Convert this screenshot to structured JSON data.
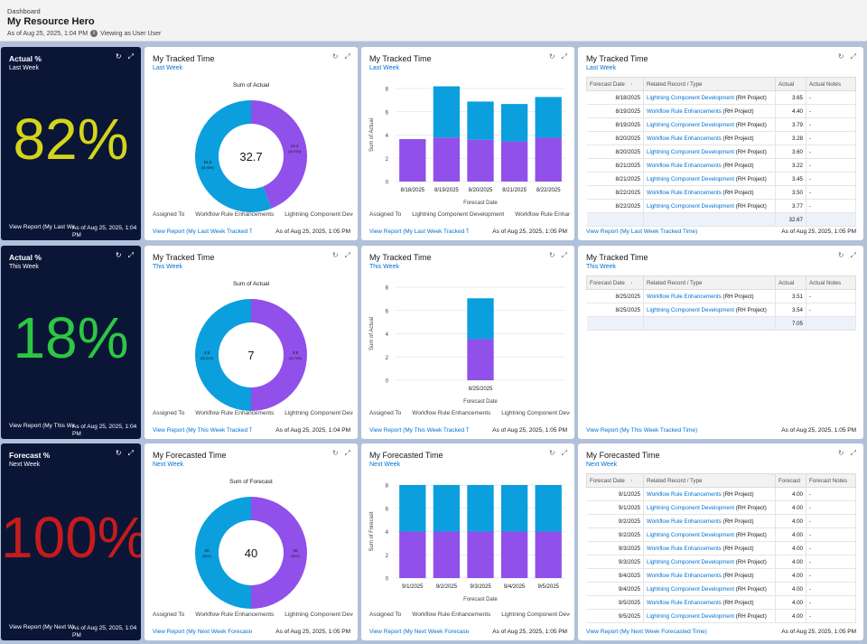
{
  "header": {
    "crumb": "Dashboard",
    "title": "My Resource Hero",
    "as_of": "As of Aug 25, 2025, 1:04 PM",
    "viewing": "Viewing as User User"
  },
  "colors": {
    "purple": "#9050e9",
    "blue": "#0b9fde",
    "yellow": "#d4d51a",
    "green": "#2dc743",
    "red": "#c41c1c",
    "link": "#0070d2"
  },
  "icons": {
    "refresh": "refresh-icon",
    "expand": "expand-icon",
    "info": "info-icon"
  },
  "rows": [
    {
      "metric": {
        "title": "Actual %",
        "sub": "Last Week",
        "value": "82%",
        "link": "View Report (My Last Week",
        "asof": "As of Aug 25, 2025, 1:04 PM",
        "color": "#d4d51a"
      },
      "donut": {
        "title": "My Tracked Time",
        "sub": "Last Week",
        "chart_title": "Sum of Actual",
        "center": "32.7",
        "purple": 14.4,
        "blue": 18.3,
        "label_purple": "14.4",
        "pct_purple": "(44.04%)",
        "label_blue": "18.3",
        "pct_blue": "(55.96%)",
        "legend_title": "Assigned To",
        "legend": [
          "Workflow Rule Enhancements",
          "Lightning Component Development"
        ],
        "link": "View Report (My Last Week Tracked Time",
        "asof": "As of Aug 25, 2025, 1:05 PM"
      },
      "bar": {
        "title": "My Tracked Time",
        "sub": "Last Week",
        "link": "View Report (My Last Week Tracked Time",
        "asof": "As of Aug 25, 2025, 1:05 PM",
        "legend_title": "Assigned To",
        "legend": [
          "Lightning Component Development",
          "Workflow Rule Enhancements"
        ],
        "chart_data": {
          "type": "bar",
          "categories": [
            "8/18/2025",
            "8/19/2025",
            "8/20/2025",
            "8/21/2025",
            "8/22/2025"
          ],
          "series": [
            {
              "name": "Lightning Component Development",
              "values": [
                3.65,
                3.79,
                3.6,
                3.45,
                3.77
              ]
            },
            {
              "name": "Workflow Rule Enhancements",
              "values": [
                0,
                4.4,
                3.28,
                3.22,
                3.5
              ]
            }
          ],
          "xlabel": "Forecast Date",
          "ylabel": "Sum of Actual",
          "ylim": [
            0,
            8
          ],
          "yticks": [
            "0",
            "2",
            "4",
            "6",
            "8"
          ]
        }
      },
      "table": {
        "title": "My Tracked Time",
        "sub": "Last Week",
        "link": "View Report (My Last Week Tracked Time)",
        "asof": "As of Aug 25, 2025, 1:05 PM",
        "columns": [
          "Forecast Date",
          "Related Record / Type",
          "Actual",
          "Actual Notes"
        ],
        "rows": [
          {
            "date": "8/18/2025",
            "rec": "Lightning Component Development",
            "type": "(RH Project)",
            "val": "3.65",
            "note": "-"
          },
          {
            "date": "8/19/2025",
            "rec": "Workflow Rule Enhancements",
            "type": "(RH Project)",
            "val": "4.40",
            "note": "-"
          },
          {
            "date": "8/19/2025",
            "rec": "Lightning Component Development",
            "type": "(RH Project)",
            "val": "3.79",
            "note": "-"
          },
          {
            "date": "8/20/2025",
            "rec": "Workflow Rule Enhancements",
            "type": "(RH Project)",
            "val": "3.28",
            "note": "-"
          },
          {
            "date": "8/20/2025",
            "rec": "Lightning Component Development",
            "type": "(RH Project)",
            "val": "3.60",
            "note": "-"
          },
          {
            "date": "8/21/2025",
            "rec": "Workflow Rule Enhancements",
            "type": "(RH Project)",
            "val": "3.22",
            "note": "-"
          },
          {
            "date": "8/21/2025",
            "rec": "Lightning Component Development",
            "type": "(RH Project)",
            "val": "3.45",
            "note": "-"
          },
          {
            "date": "8/22/2025",
            "rec": "Workflow Rule Enhancements",
            "type": "(RH Project)",
            "val": "3.50",
            "note": "-"
          },
          {
            "date": "8/22/2025",
            "rec": "Lightning Component Development",
            "type": "(RH Project)",
            "val": "3.77",
            "note": "-"
          }
        ],
        "total": "32.67"
      }
    },
    {
      "metric": {
        "title": "Actual %",
        "sub": "This Week",
        "value": "18%",
        "link": "View Report (My This We",
        "asof": "As of Aug 25, 2025, 1:04 PM",
        "color": "#2dc743"
      },
      "donut": {
        "title": "My Tracked Time",
        "sub": "This Week",
        "chart_title": "Sum of Actual",
        "center": "7",
        "purple": 3.5,
        "blue": 3.5,
        "label_purple": "3.5",
        "pct_purple": "(49.79%)",
        "label_blue": "3.5",
        "pct_blue": "(50.21%)",
        "legend_title": "Assigned To",
        "legend": [
          "Workflow Rule Enhancements",
          "Lightning Component Development"
        ],
        "link": "View Report (My This Week Tracked Time",
        "asof": "As of Aug 25, 2025, 1:04 PM"
      },
      "bar": {
        "title": "My Tracked Time",
        "sub": "This Week",
        "link": "View Report (My This Week Tracked Time",
        "asof": "As of Aug 25, 2025, 1:05 PM",
        "legend_title": "Assigned To",
        "legend": [
          "Workflow Rule Enhancements",
          "Lightning Component Development"
        ],
        "chart_data": {
          "type": "bar",
          "categories": [
            "8/25/2025"
          ],
          "series": [
            {
              "name": "Lightning Component Development",
              "values": [
                3.54
              ]
            },
            {
              "name": "Workflow Rule Enhancements",
              "values": [
                3.51
              ]
            }
          ],
          "xlabel": "Forecast Date",
          "ylabel": "Sum of Actual",
          "ylim": [
            0,
            8
          ],
          "yticks": [
            "0",
            "2",
            "4",
            "6",
            "8"
          ]
        }
      },
      "table": {
        "title": "My Tracked Time",
        "sub": "This Week",
        "link": "View Report (My This Week Tracked Time)",
        "asof": "As of Aug 25, 2025, 1:05 PM",
        "columns": [
          "Forecast Date",
          "Related Record / Type",
          "Actual",
          "Actual Notes"
        ],
        "rows": [
          {
            "date": "8/25/2025",
            "rec": "Workflow Rule Enhancements",
            "type": "(RH Project)",
            "val": "3.51",
            "note": "-"
          },
          {
            "date": "8/25/2025",
            "rec": "Lightning Component Development",
            "type": "(RH Project)",
            "val": "3.54",
            "note": "-"
          }
        ],
        "total": "7.05"
      }
    },
    {
      "metric": {
        "title": "Forecast %",
        "sub": "Next Week",
        "value": "100%",
        "link": "View Report (My Next We",
        "asof": "As of Aug 25, 2025, 1:04 PM",
        "color": "#c41c1c"
      },
      "donut": {
        "title": "My Forecasted Time",
        "sub": "Next Week",
        "chart_title": "Sum of Forecast",
        "center": "40",
        "purple": 20,
        "blue": 20,
        "label_purple": "20",
        "pct_purple": "(50%)",
        "label_blue": "20",
        "pct_blue": "(50%)",
        "legend_title": "Assigned To",
        "legend": [
          "Workflow Rule Enhancements",
          "Lightning Component Development"
        ],
        "link": "View Report (My Next Week Forecasted",
        "asof": "As of Aug 25, 2025, 1:05 PM"
      },
      "bar": {
        "title": "My Forecasted Time",
        "sub": "Next Week",
        "link": "View Report (My Next Week Forecasted",
        "asof": "As of Aug 25, 2025, 1:05 PM",
        "legend_title": "Assigned To",
        "legend": [
          "Workflow Rule Enhancements",
          "Lightning Component Development"
        ],
        "chart_data": {
          "type": "bar",
          "categories": [
            "9/1/2025",
            "9/2/2025",
            "9/3/2025",
            "9/4/2025",
            "9/5/2025"
          ],
          "series": [
            {
              "name": "Lightning Component Development",
              "values": [
                4,
                4,
                4,
                4,
                4
              ]
            },
            {
              "name": "Workflow Rule Enhancements",
              "values": [
                4,
                4,
                4,
                4,
                4
              ]
            }
          ],
          "xlabel": "Forecast Date",
          "ylabel": "Sum of Forecast",
          "ylim": [
            0,
            8
          ],
          "yticks": [
            "0",
            "2",
            "4",
            "6",
            "8"
          ]
        }
      },
      "table": {
        "title": "My Forecasted Time",
        "sub": "Next Week",
        "link": "View Report (My Next Week Forecasted Time)",
        "asof": "As of Aug 25, 2025, 1:05 PM",
        "columns": [
          "Forecast Date",
          "Related Record / Type",
          "Forecast",
          "Forecast Notes"
        ],
        "rows": [
          {
            "date": "9/1/2025",
            "rec": "Workflow Rule Enhancements",
            "type": "(RH Project)",
            "val": "4.00",
            "note": "-"
          },
          {
            "date": "9/1/2025",
            "rec": "Lightning Component Development",
            "type": "(RH Project)",
            "val": "4.00",
            "note": "-"
          },
          {
            "date": "9/2/2025",
            "rec": "Workflow Rule Enhancements",
            "type": "(RH Project)",
            "val": "4.00",
            "note": "-"
          },
          {
            "date": "9/2/2025",
            "rec": "Lightning Component Development",
            "type": "(RH Project)",
            "val": "4.00",
            "note": "-"
          },
          {
            "date": "9/3/2025",
            "rec": "Workflow Rule Enhancements",
            "type": "(RH Project)",
            "val": "4.00",
            "note": "-"
          },
          {
            "date": "9/3/2025",
            "rec": "Lightning Component Development",
            "type": "(RH Project)",
            "val": "4.00",
            "note": "-"
          },
          {
            "date": "9/4/2025",
            "rec": "Workflow Rule Enhancements",
            "type": "(RH Project)",
            "val": "4.00",
            "note": "-"
          },
          {
            "date": "9/4/2025",
            "rec": "Lightning Component Development",
            "type": "(RH Project)",
            "val": "4.00",
            "note": "-"
          },
          {
            "date": "9/5/2025",
            "rec": "Workflow Rule Enhancements",
            "type": "(RH Project)",
            "val": "4.00",
            "note": "-"
          },
          {
            "date": "9/5/2025",
            "rec": "Lightning Component Development",
            "type": "(RH Project)",
            "val": "4.00",
            "note": "-"
          }
        ],
        "total": ""
      }
    }
  ]
}
